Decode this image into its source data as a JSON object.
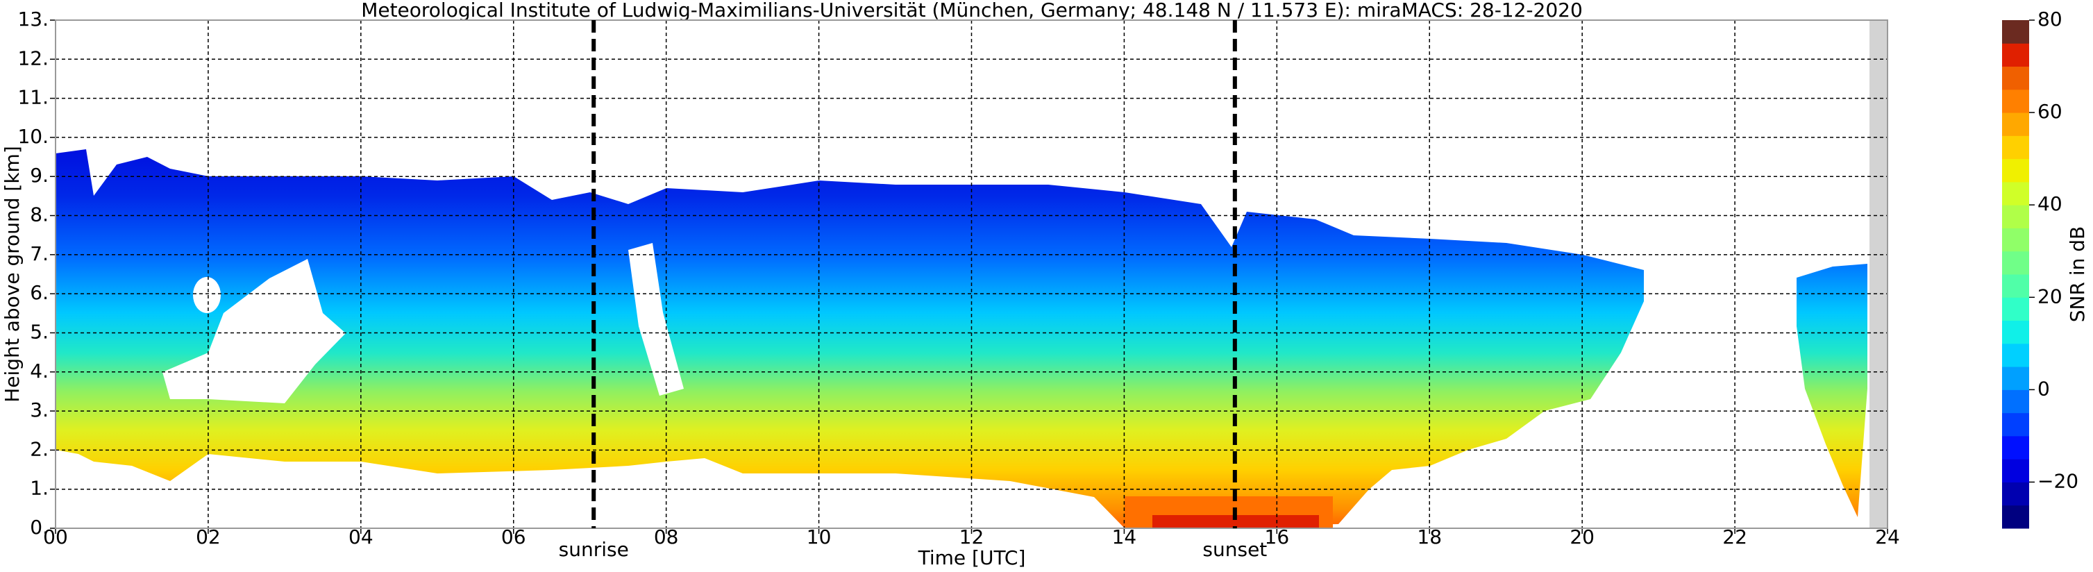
{
  "chart_data": {
    "type": "heatmap",
    "title": "Meteorological Institute of Ludwig-Maximilians-Universität (München, Germany; 48.148 N / 11.573 E):    miraMACS: 28-12-2020",
    "xlabel": "Time [UTC]",
    "ylabel": "Height above ground [km]",
    "xlim": [
      0,
      24
    ],
    "ylim": [
      0,
      13
    ],
    "xticks": [
      {
        "value": 0,
        "label": "00"
      },
      {
        "value": 2,
        "label": "02"
      },
      {
        "value": 4,
        "label": "04"
      },
      {
        "value": 6,
        "label": "06"
      },
      {
        "value": 8,
        "label": "08"
      },
      10,
      12,
      14,
      16,
      18,
      20,
      22,
      24
    ],
    "yticks": [
      {
        "value": 0,
        "label": "0."
      },
      {
        "value": 1,
        "label": "1."
      },
      {
        "value": 2,
        "label": "2."
      },
      {
        "value": 3,
        "label": "3."
      },
      {
        "value": 4,
        "label": "4."
      },
      {
        "value": 5,
        "label": "5."
      },
      {
        "value": 6,
        "label": "6."
      },
      {
        "value": 7,
        "label": "7."
      },
      {
        "value": 8,
        "label": "8."
      },
      {
        "value": 9,
        "label": "9."
      },
      {
        "value": 10,
        "label": "10."
      },
      {
        "value": 11,
        "label": "11."
      },
      {
        "value": 12,
        "label": "12."
      },
      {
        "value": 13,
        "label": "13."
      }
    ],
    "grid": true,
    "annotations": [
      {
        "text": "sunrise",
        "x": 7.05
      },
      {
        "text": "sunset",
        "x": 15.45
      }
    ],
    "colorbar": {
      "label": "SNR in dB",
      "lim": [
        -30,
        80
      ],
      "ticks": [
        {
          "value": -20,
          "label": "−20"
        },
        0,
        20,
        40,
        60,
        80
      ],
      "colors": [
        "#000080",
        "#0000b0",
        "#0000e0",
        "#0010ff",
        "#0040ff",
        "#0070ff",
        "#00a0ff",
        "#00d0ff",
        "#10f0e8",
        "#30ffc8",
        "#50ffa8",
        "#70ff88",
        "#90ff68",
        "#b0ff48",
        "#d0ff28",
        "#f0f000",
        "#ffd000",
        "#ffa800",
        "#ff8000",
        "#f06000",
        "#e02000",
        "#6b2a20"
      ]
    }
  }
}
